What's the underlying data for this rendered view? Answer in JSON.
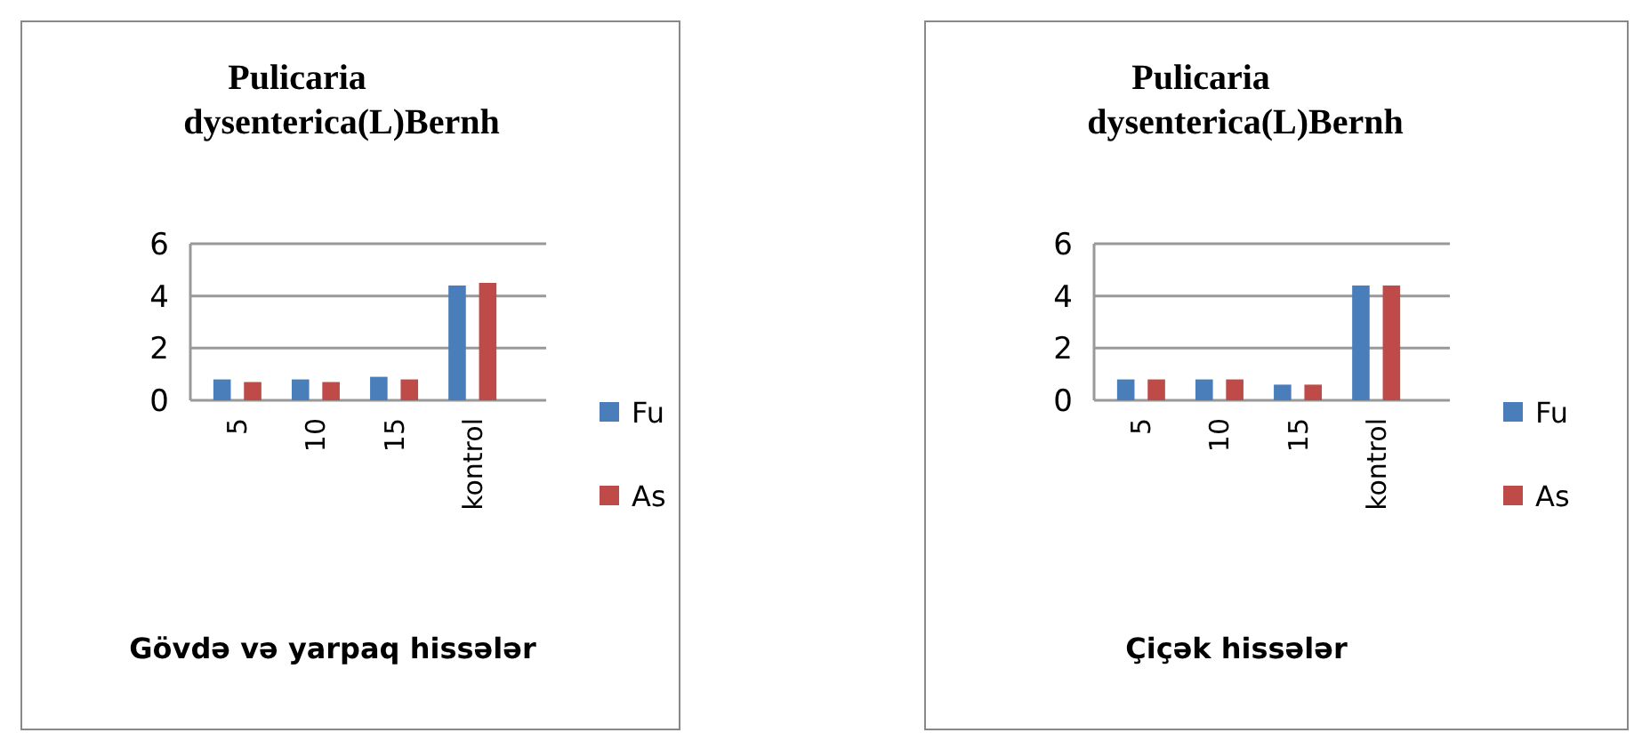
{
  "chart_data": [
    {
      "type": "bar",
      "title": "Pulicaria dysenterica(L)Bernh",
      "xlabel": "Gövdə və yarpaq hissələr",
      "categories": [
        "5",
        "10",
        "15",
        "kontrol"
      ],
      "series": [
        {
          "name": "Fu",
          "color": "#4a7ebb",
          "values": [
            0.8,
            0.8,
            0.9,
            4.4
          ]
        },
        {
          "name": "As",
          "color": "#be4b48",
          "values": [
            0.7,
            0.7,
            0.8,
            4.5
          ]
        }
      ],
      "ylim": [
        0,
        6
      ],
      "yticks": [
        0,
        2,
        4,
        6
      ],
      "grid": "y",
      "legend": "right"
    },
    {
      "type": "bar",
      "title": "Pulicaria dysenterica(L)Bernh",
      "xlabel": "Çiçək hissələr",
      "categories": [
        "5",
        "10",
        "15",
        "kontrol"
      ],
      "series": [
        {
          "name": "Fu",
          "color": "#4a7ebb",
          "values": [
            0.8,
            0.8,
            0.6,
            4.4
          ]
        },
        {
          "name": "As",
          "color": "#be4b48",
          "values": [
            0.8,
            0.8,
            0.6,
            4.4
          ]
        }
      ],
      "ylim": [
        0,
        6
      ],
      "yticks": [
        0,
        2,
        4,
        6
      ],
      "grid": "y",
      "legend": "right"
    }
  ]
}
